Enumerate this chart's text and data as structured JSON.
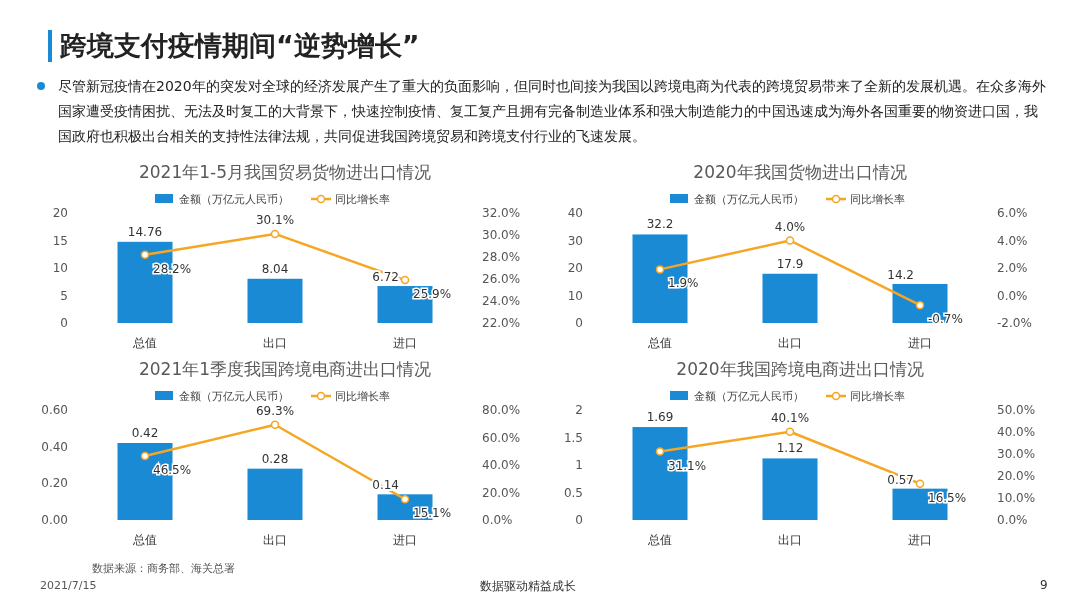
{
  "chart_data": [
    {
      "type": "bar",
      "title": "2021年1-5月我国贸易货物进出口情况",
      "annotations": [
        "跨境支付疫情期间“逆势增长”",
        "尽管新冠疫情在2020年的突发对全球的经济发展产生了重大的负面影响，但同时也间接为我国以跨境电商为代表的跨境贸易带来了全新的发展机遇。在众多海外国家遭受疫情困扰、无法及时复工的大背景下，快速控制疫情、复工复产且拥有完备制造业体系和强大制造能力的中国迅速成为海外各国重要的物资进口国，我国政府也积极出台相关的支持性法律法规，共同促进我国跨境贸易和跨境支付行业的飞速发展。"
      ],
      "categories": [
        "总值",
        "出口",
        "进口"
      ],
      "legend": "top",
      "marker": "circle",
      "series": [
        {
          "type": "bar",
          "name": "金额（万亿元人民币）",
          "color": "#1a8ad4",
          "values": [
            14.76,
            8.04,
            6.72
          ],
          "value_labels": [
            "14.76",
            "8.04",
            "6.72"
          ]
        },
        {
          "type": "line",
          "axis": "y2",
          "name": "同比增长率",
          "color": "#f5a623",
          "values": [
            28.2,
            30.1,
            25.9
          ],
          "value_labels": [
            "28.2%",
            "30.1%",
            "25.9%"
          ]
        }
      ],
      "ylim": [
        0,
        20
      ],
      "yticks": [
        0,
        5,
        10,
        15,
        20
      ],
      "y2lim": [
        22,
        32
      ],
      "y2ticks": [
        {
          "value": 22,
          "label": "22.0%"
        },
        {
          "value": 24,
          "label": "24.0%"
        },
        {
          "value": 26,
          "label": "26.0%"
        },
        {
          "value": 28,
          "label": "28.0%"
        },
        {
          "value": 30,
          "label": "30.0%"
        },
        {
          "value": 32,
          "label": "32.0%"
        }
      ]
    },
    {
      "type": "bar",
      "title": "2020年我国货物进出口情况",
      "categories": [
        "总值",
        "出口",
        "进口"
      ],
      "legend": "top",
      "marker": "circle",
      "series": [
        {
          "type": "bar",
          "name": "金额（万亿元人民币）",
          "color": "#1a8ad4",
          "values": [
            32.2,
            17.9,
            14.2
          ],
          "value_labels": [
            "32.2",
            "17.9",
            "14.2"
          ]
        },
        {
          "type": "line",
          "axis": "y2",
          "name": "同比增长率",
          "color": "#f5a623",
          "values": [
            1.9,
            4.0,
            -0.7
          ],
          "value_labels": [
            "1.9%",
            "4.0%",
            "-0.7%"
          ]
        }
      ],
      "ylim": [
        0,
        40
      ],
      "yticks": [
        0,
        10,
        20,
        30,
        40
      ],
      "y2lim": [
        -2,
        6
      ],
      "y2ticks": [
        {
          "value": -2,
          "label": "-2.0%"
        },
        {
          "value": 0,
          "label": "0.0%"
        },
        {
          "value": 2,
          "label": "2.0%"
        },
        {
          "value": 4,
          "label": "4.0%"
        },
        {
          "value": 6,
          "label": "6.0%"
        }
      ]
    },
    {
      "type": "bar",
      "title": "2021年1季度我国跨境电商进出口情况",
      "categories": [
        "总值",
        "出口",
        "进口"
      ],
      "legend": "top",
      "marker": "circle",
      "series": [
        {
          "type": "bar",
          "name": "金额（万亿元人民币）",
          "color": "#1a8ad4",
          "values": [
            0.42,
            0.28,
            0.14
          ],
          "value_labels": [
            "0.42",
            "0.28",
            "0.14"
          ]
        },
        {
          "type": "line",
          "axis": "y2",
          "name": "同比增长率",
          "color": "#f5a623",
          "values": [
            46.5,
            69.3,
            15.1
          ],
          "value_labels": [
            "46.5%",
            "69.3%",
            "15.1%"
          ]
        }
      ],
      "ylim": [
        0,
        0.6
      ],
      "yticks": [
        {
          "value": 0,
          "label": "0.00"
        },
        {
          "value": 0.2,
          "label": "0.20"
        },
        {
          "value": 0.4,
          "label": "0.40"
        },
        {
          "value": 0.6,
          "label": "0.60"
        }
      ],
      "y2lim": [
        0,
        80
      ],
      "y2ticks": [
        {
          "value": 0,
          "label": "0.0%"
        },
        {
          "value": 20,
          "label": "20.0%"
        },
        {
          "value": 40,
          "label": "40.0%"
        },
        {
          "value": 60,
          "label": "60.0%"
        },
        {
          "value": 80,
          "label": "80.0%"
        }
      ]
    },
    {
      "type": "bar",
      "title": "2020年我国跨境电商进出口情况",
      "annotations": [
        "数据来源：商务部、海关总署",
        "2021/7/15",
        "数据驱动精益成长",
        "9"
      ],
      "categories": [
        "总值",
        "出口",
        "进口"
      ],
      "legend": "top",
      "marker": "circle",
      "series": [
        {
          "type": "bar",
          "name": "金额（万亿元人民币）",
          "color": "#1a8ad4",
          "values": [
            1.69,
            1.12,
            0.57
          ],
          "value_labels": [
            "1.69",
            "1.12",
            "0.57"
          ]
        },
        {
          "type": "line",
          "axis": "y2",
          "name": "同比增长率",
          "color": "#f5a623",
          "values": [
            31.1,
            40.1,
            16.5
          ],
          "value_labels": [
            "31.1%",
            "40.1%",
            "16.5%"
          ]
        }
      ],
      "ylim": [
        0,
        2
      ],
      "yticks": [
        0,
        0.5,
        1,
        1.5,
        2
      ],
      "y2lim": [
        0,
        50
      ],
      "y2ticks": [
        {
          "value": 0,
          "label": "0.0%"
        },
        {
          "value": 10,
          "label": "10.0%"
        },
        {
          "value": 20,
          "label": "20.0%"
        },
        {
          "value": 30,
          "label": "30.0%"
        },
        {
          "value": 40,
          "label": "40.0%"
        },
        {
          "value": 50,
          "label": "50.0%"
        }
      ]
    }
  ]
}
